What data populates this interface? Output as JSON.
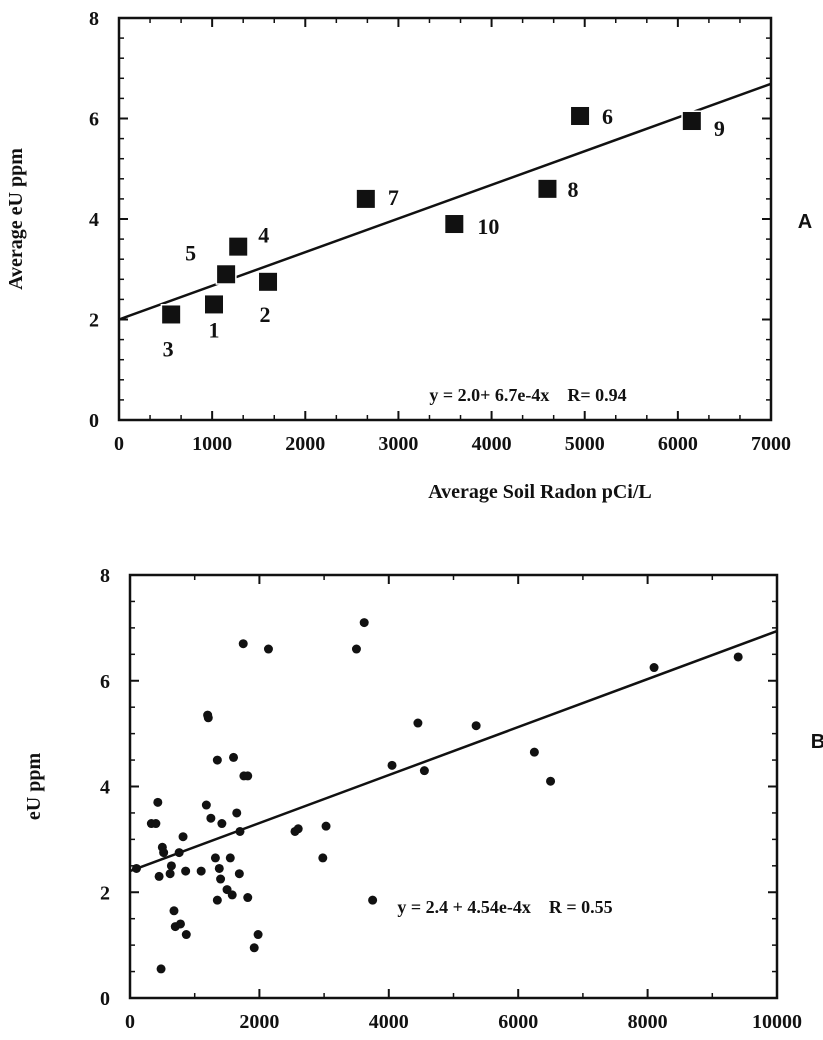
{
  "chart_data": [
    {
      "type": "scatter",
      "panel_label": "A",
      "xlabel": "Average Soil Radon pCi/L",
      "ylabel": "Average eU ppm",
      "xlim": [
        0,
        7000
      ],
      "ylim": [
        0,
        8
      ],
      "xticks": [
        "0",
        "1000",
        "2000",
        "3000",
        "4000",
        "5000",
        "6000",
        "7000"
      ],
      "yticks": [
        "0",
        "2",
        "4",
        "6",
        "8"
      ],
      "marker": "square",
      "grid": false,
      "points": [
        {
          "label": "1",
          "x": 1020,
          "y": 2.3
        },
        {
          "label": "2",
          "x": 1600,
          "y": 2.75
        },
        {
          "label": "3",
          "x": 560,
          "y": 2.1
        },
        {
          "label": "4",
          "x": 1280,
          "y": 3.45
        },
        {
          "label": "5",
          "x": 1150,
          "y": 2.9
        },
        {
          "label": "6",
          "x": 4950,
          "y": 6.05
        },
        {
          "label": "7",
          "x": 2650,
          "y": 4.4
        },
        {
          "label": "8",
          "x": 4600,
          "y": 4.6
        },
        {
          "label": "9",
          "x": 6150,
          "y": 5.95
        },
        {
          "label": "10",
          "x": 3600,
          "y": 3.9
        }
      ],
      "fit": {
        "intercept": 2.0,
        "slope": 0.00067,
        "equation": "y = 2.0+ 6.7e-4x",
        "r_text": "R= 0.94"
      }
    },
    {
      "type": "scatter",
      "panel_label": "B",
      "xlabel": "Radon pCi/L",
      "ylabel": "eU ppm",
      "xlim": [
        0,
        10000
      ],
      "ylim": [
        0,
        8
      ],
      "xticks": [
        "0",
        "2000",
        "4000",
        "6000",
        "8000",
        "10000"
      ],
      "yticks": [
        "0",
        "2",
        "4",
        "6",
        "8"
      ],
      "marker": "circle",
      "grid": false,
      "points": [
        {
          "x": 100,
          "y": 2.45
        },
        {
          "x": 330,
          "y": 3.3
        },
        {
          "x": 400,
          "y": 3.3
        },
        {
          "x": 430,
          "y": 3.7
        },
        {
          "x": 450,
          "y": 2.3
        },
        {
          "x": 500,
          "y": 2.85
        },
        {
          "x": 520,
          "y": 2.75
        },
        {
          "x": 480,
          "y": 0.55
        },
        {
          "x": 620,
          "y": 2.35
        },
        {
          "x": 640,
          "y": 2.5
        },
        {
          "x": 680,
          "y": 1.65
        },
        {
          "x": 700,
          "y": 1.35
        },
        {
          "x": 780,
          "y": 1.4
        },
        {
          "x": 820,
          "y": 3.05
        },
        {
          "x": 760,
          "y": 2.75
        },
        {
          "x": 860,
          "y": 2.4
        },
        {
          "x": 870,
          "y": 1.2
        },
        {
          "x": 1100,
          "y": 2.4
        },
        {
          "x": 1200,
          "y": 5.35
        },
        {
          "x": 1210,
          "y": 5.3
        },
        {
          "x": 1180,
          "y": 3.65
        },
        {
          "x": 1250,
          "y": 3.4
        },
        {
          "x": 1350,
          "y": 4.5
        },
        {
          "x": 1320,
          "y": 2.65
        },
        {
          "x": 1380,
          "y": 2.45
        },
        {
          "x": 1400,
          "y": 2.25
        },
        {
          "x": 1350,
          "y": 1.85
        },
        {
          "x": 1420,
          "y": 3.3
        },
        {
          "x": 1500,
          "y": 2.05
        },
        {
          "x": 1550,
          "y": 2.65
        },
        {
          "x": 1580,
          "y": 1.95
        },
        {
          "x": 1600,
          "y": 4.55
        },
        {
          "x": 1650,
          "y": 3.5
        },
        {
          "x": 1700,
          "y": 3.15
        },
        {
          "x": 1690,
          "y": 2.35
        },
        {
          "x": 1750,
          "y": 6.7
        },
        {
          "x": 1760,
          "y": 4.2
        },
        {
          "x": 1820,
          "y": 4.2
        },
        {
          "x": 1820,
          "y": 1.9
        },
        {
          "x": 1920,
          "y": 0.95
        },
        {
          "x": 1980,
          "y": 1.2
        },
        {
          "x": 2140,
          "y": 6.6
        },
        {
          "x": 2550,
          "y": 3.15
        },
        {
          "x": 2600,
          "y": 3.2
        },
        {
          "x": 2980,
          "y": 2.65
        },
        {
          "x": 3030,
          "y": 3.25
        },
        {
          "x": 3500,
          "y": 6.6
        },
        {
          "x": 3620,
          "y": 7.1
        },
        {
          "x": 3750,
          "y": 1.85
        },
        {
          "x": 4050,
          "y": 4.4
        },
        {
          "x": 4450,
          "y": 5.2
        },
        {
          "x": 4550,
          "y": 4.3
        },
        {
          "x": 5350,
          "y": 5.15
        },
        {
          "x": 6250,
          "y": 4.65
        },
        {
          "x": 6500,
          "y": 4.1
        },
        {
          "x": 8100,
          "y": 6.25
        },
        {
          "x": 9400,
          "y": 6.45
        }
      ],
      "fit": {
        "intercept": 2.4,
        "slope": 0.000454,
        "equation": "y = 2.4 + 4.54e-4x",
        "r_text": "R = 0.55"
      }
    }
  ]
}
